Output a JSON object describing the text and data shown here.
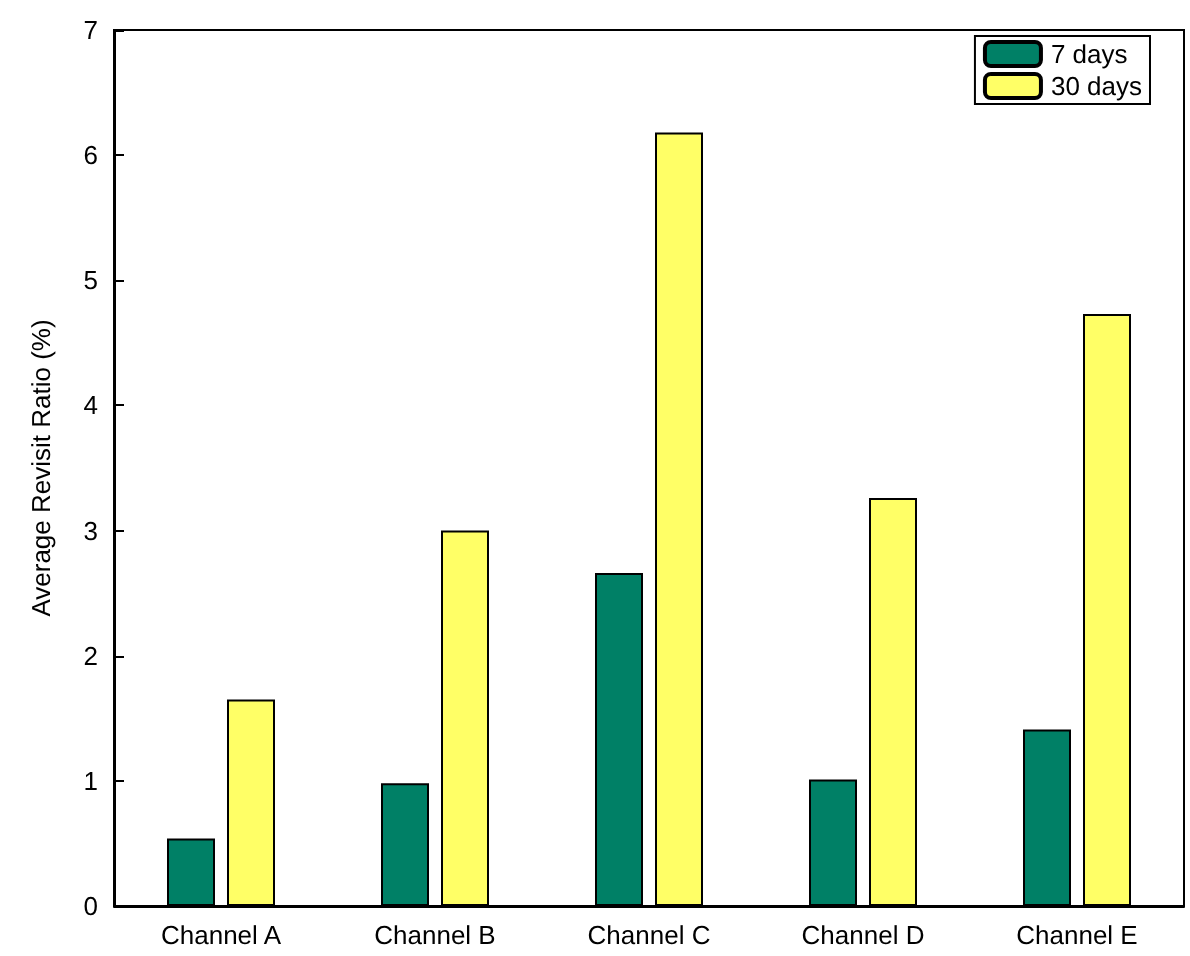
{
  "chart_data": {
    "type": "bar",
    "ylabel": "Average Revisit Ratio (%)",
    "categories": [
      "Channel A",
      "Channel B",
      "Channel C",
      "Channel D",
      "Channel E"
    ],
    "series": [
      {
        "name": "7 days",
        "color": "#008066",
        "values": [
          0.54,
          0.98,
          2.66,
          1.01,
          1.41
        ]
      },
      {
        "name": "30 days",
        "color": "#ffff66",
        "values": [
          1.65,
          3.0,
          6.18,
          3.26,
          4.73
        ]
      }
    ],
    "ylim": [
      0,
      7
    ],
    "yticks": [
      0,
      1,
      2,
      3,
      4,
      5,
      6,
      7
    ],
    "grid": false,
    "legend": "top right"
  }
}
